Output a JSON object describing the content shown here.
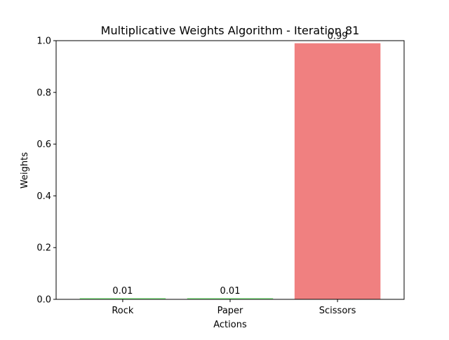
{
  "chart_data": {
    "type": "bar",
    "title": "Multiplicative Weights Algorithm - Iteration 81",
    "xlabel": "Actions",
    "ylabel": "Weights",
    "categories": [
      "Rock",
      "Paper",
      "Scissors"
    ],
    "values": [
      0.005,
      0.005,
      0.99
    ],
    "data_labels": [
      "0.01",
      "0.01",
      "0.99"
    ],
    "bar_colors": [
      "#90ee90",
      "#90ee90",
      "#f08080"
    ],
    "ylim": [
      0,
      1.0
    ],
    "yticks": [
      0.0,
      0.2,
      0.4,
      0.6,
      0.8,
      1.0
    ],
    "ytick_labels": [
      "0.0",
      "0.2",
      "0.4",
      "0.6",
      "0.8",
      "1.0"
    ],
    "grid": false,
    "legend": "none"
  }
}
